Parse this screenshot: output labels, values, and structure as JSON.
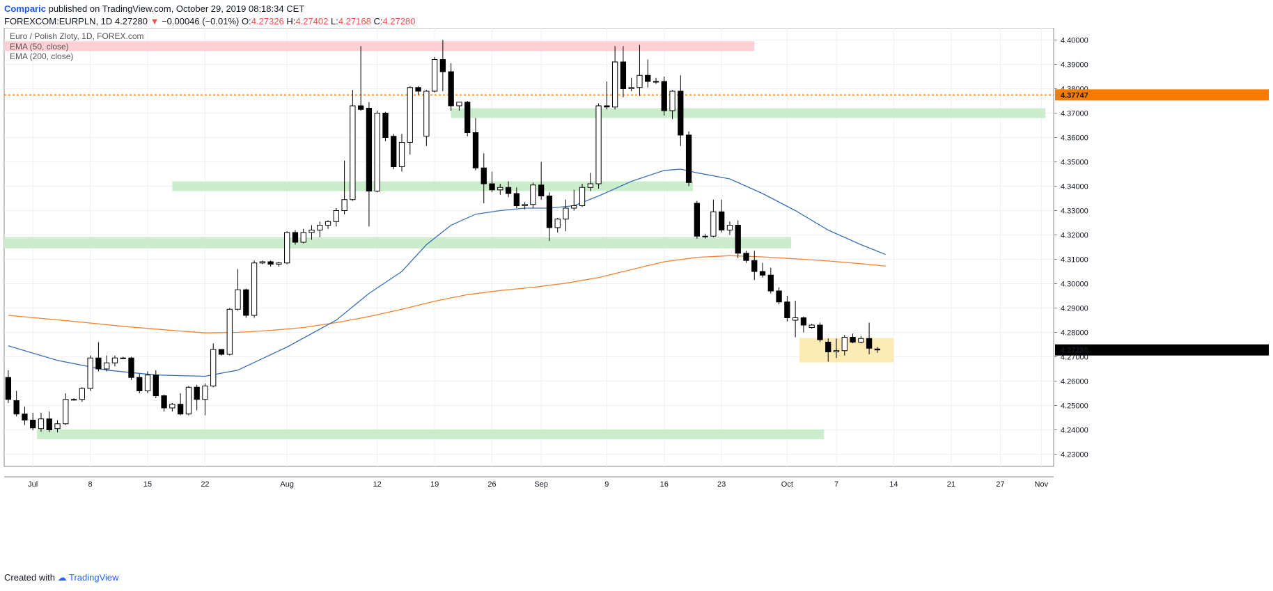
{
  "header": {
    "author": "Comparic",
    "published_text": "published on TradingView.com, October 29, 2019 08:18:34 CET",
    "symbol": "FOREXCOM:EURPLN, 1D",
    "last": "4.27280",
    "arrow": "▼",
    "change": "−0.00046 (−0.01%)",
    "o_label": "O:",
    "o_val": "4.27326",
    "h_label": "H:",
    "h_val": "4.27402",
    "l_label": "L:",
    "l_val": "4.27168",
    "c_label": "C:",
    "c_val": "4.27280"
  },
  "footer": {
    "created_with": "Created with",
    "brand": "TradingView"
  },
  "colors": {
    "up_fill": "#ffffff",
    "down_fill": "#000000",
    "wick": "#000000",
    "ema50": "#3a6fb5",
    "ema200": "#f48431",
    "resistance_zone": "#ffcdd2",
    "support_zone": "#c8ecc8",
    "consolidation_zone": "#fde8a8",
    "ref_line": "#f57c00",
    "last_price_bg": "#000000"
  },
  "chart_data": {
    "type": "candlestick",
    "title": "Euro / Polish Zloty, 1D, FOREX.com",
    "legend": [
      "EMA (50, close)",
      "EMA (200, close)"
    ],
    "legend_position": "top-left",
    "grid": true,
    "ylim": [
      4.225,
      4.405
    ],
    "y_ticks": [
      "4.23000",
      "4.24000",
      "4.25000",
      "4.26000",
      "4.27000",
      "4.28000",
      "4.29000",
      "4.30000",
      "4.31000",
      "4.32000",
      "4.33000",
      "4.34000",
      "4.35000",
      "4.36000",
      "4.37000",
      "4.38000",
      "4.39000",
      "4.40000"
    ],
    "x_tick_labels": [
      {
        "label": "Jul",
        "day": -1
      },
      {
        "label": "8",
        "day": 6
      },
      {
        "label": "15",
        "day": 13
      },
      {
        "label": "22",
        "day": 20
      },
      {
        "label": "Aug",
        "day": 30
      },
      {
        "label": "12",
        "day": 41
      },
      {
        "label": "19",
        "day": 48
      },
      {
        "label": "26",
        "day": 55
      },
      {
        "label": "Sep",
        "day": 61
      },
      {
        "label": "9",
        "day": 69
      },
      {
        "label": "16",
        "day": 76
      },
      {
        "label": "23",
        "day": 83
      },
      {
        "label": "Oct",
        "day": 91
      },
      {
        "label": "7",
        "day": 97
      },
      {
        "label": "14",
        "day": 104
      },
      {
        "label": "21",
        "day": 111
      },
      {
        "label": "27",
        "day": 117
      },
      {
        "label": "Nov",
        "day": 122
      }
    ],
    "candles": [
      {
        "day": -4,
        "o": 4.2615,
        "h": 4.2645,
        "l": 4.251,
        "c": 4.2525
      },
      {
        "day": -3,
        "o": 4.252,
        "h": 4.256,
        "l": 4.2455,
        "c": 4.2465
      },
      {
        "day": -2,
        "o": 4.2465,
        "h": 4.2495,
        "l": 4.242,
        "c": 4.244
      },
      {
        "day": -1,
        "o": 4.244,
        "h": 4.247,
        "l": 4.2398,
        "c": 4.2408
      },
      {
        "day": 0,
        "o": 4.2405,
        "h": 4.247,
        "l": 4.2392,
        "c": 4.2445
      },
      {
        "day": 1,
        "o": 4.2445,
        "h": 4.2475,
        "l": 4.239,
        "c": 4.24
      },
      {
        "day": 2,
        "o": 4.2405,
        "h": 4.244,
        "l": 4.239,
        "c": 4.2425
      },
      {
        "day": 3,
        "o": 4.2425,
        "h": 4.255,
        "l": 4.242,
        "c": 4.2525
      },
      {
        "day": 4,
        "o": 4.2525,
        "h": 4.253,
        "l": 4.252,
        "c": 4.2525
      },
      {
        "day": 5,
        "o": 4.2525,
        "h": 4.2575,
        "l": 4.2515,
        "c": 4.257
      },
      {
        "day": 6,
        "o": 4.257,
        "h": 4.2705,
        "l": 4.256,
        "c": 4.2695
      },
      {
        "day": 7,
        "o": 4.2695,
        "h": 4.276,
        "l": 4.264,
        "c": 4.265
      },
      {
        "day": 8,
        "o": 4.265,
        "h": 4.2705,
        "l": 4.264,
        "c": 4.2675
      },
      {
        "day": 9,
        "o": 4.2675,
        "h": 4.2705,
        "l": 4.266,
        "c": 4.2695
      },
      {
        "day": 10,
        "o": 4.2695,
        "h": 4.27,
        "l": 4.269,
        "c": 4.2695
      },
      {
        "day": 11,
        "o": 4.2695,
        "h": 4.27,
        "l": 4.2605,
        "c": 4.2615
      },
      {
        "day": 12,
        "o": 4.2615,
        "h": 4.263,
        "l": 4.255,
        "c": 4.256
      },
      {
        "day": 13,
        "o": 4.256,
        "h": 4.264,
        "l": 4.255,
        "c": 4.2625
      },
      {
        "day": 14,
        "o": 4.2625,
        "h": 4.2645,
        "l": 4.253,
        "c": 4.254
      },
      {
        "day": 15,
        "o": 4.254,
        "h": 4.2545,
        "l": 4.2475,
        "c": 4.249
      },
      {
        "day": 16,
        "o": 4.249,
        "h": 4.251,
        "l": 4.2475,
        "c": 4.2505
      },
      {
        "day": 17,
        "o": 4.2505,
        "h": 4.255,
        "l": 4.246,
        "c": 4.2465
      },
      {
        "day": 18,
        "o": 4.2465,
        "h": 4.258,
        "l": 4.246,
        "c": 4.2575
      },
      {
        "day": 19,
        "o": 4.2575,
        "h": 4.2585,
        "l": 4.248,
        "c": 4.2525
      },
      {
        "day": 20,
        "o": 4.2525,
        "h": 4.259,
        "l": 4.246,
        "c": 4.258
      },
      {
        "day": 21,
        "o": 4.258,
        "h": 4.2755,
        "l": 4.2575,
        "c": 4.273
      },
      {
        "day": 22,
        "o": 4.273,
        "h": 4.273,
        "l": 4.2705,
        "c": 4.271
      },
      {
        "day": 23,
        "o": 4.271,
        "h": 4.29,
        "l": 4.2705,
        "c": 4.2895
      },
      {
        "day": 24,
        "o": 4.2895,
        "h": 4.306,
        "l": 4.289,
        "c": 4.2975
      },
      {
        "day": 25,
        "o": 4.2975,
        "h": 4.298,
        "l": 4.286,
        "c": 4.287
      },
      {
        "day": 26,
        "o": 4.287,
        "h": 4.3095,
        "l": 4.286,
        "c": 4.3085
      },
      {
        "day": 27,
        "o": 4.3085,
        "h": 4.3095,
        "l": 4.308,
        "c": 4.309
      },
      {
        "day": 28,
        "o": 4.309,
        "h": 4.3095,
        "l": 4.307,
        "c": 4.308
      },
      {
        "day": 29,
        "o": 4.308,
        "h": 4.309,
        "l": 4.307,
        "c": 4.3085
      },
      {
        "day": 30,
        "o": 4.3085,
        "h": 4.3215,
        "l": 4.308,
        "c": 4.321
      },
      {
        "day": 31,
        "o": 4.321,
        "h": 4.322,
        "l": 4.316,
        "c": 4.317
      },
      {
        "day": 32,
        "o": 4.317,
        "h": 4.3225,
        "l": 4.3165,
        "c": 4.321
      },
      {
        "day": 33,
        "o": 4.321,
        "h": 4.324,
        "l": 4.318,
        "c": 4.322
      },
      {
        "day": 34,
        "o": 4.322,
        "h": 4.3255,
        "l": 4.319,
        "c": 4.324
      },
      {
        "day": 35,
        "o": 4.324,
        "h": 4.326,
        "l": 4.3225,
        "c": 4.3255
      },
      {
        "day": 36,
        "o": 4.3255,
        "h": 4.331,
        "l": 4.3235,
        "c": 4.33
      },
      {
        "day": 37,
        "o": 4.33,
        "h": 4.3505,
        "l": 4.3285,
        "c": 4.3345
      },
      {
        "day": 38,
        "o": 4.3345,
        "h": 4.3795,
        "l": 4.334,
        "c": 4.373
      },
      {
        "day": 39,
        "o": 4.373,
        "h": 4.3975,
        "l": 4.371,
        "c": 4.3715
      },
      {
        "day": 40,
        "o": 4.372,
        "h": 4.3745,
        "l": 4.3235,
        "c": 4.338
      },
      {
        "day": 41,
        "o": 4.338,
        "h": 4.371,
        "l": 4.3375,
        "c": 4.37
      },
      {
        "day": 42,
        "o": 4.37,
        "h": 4.3705,
        "l": 4.3585,
        "c": 4.36
      },
      {
        "day": 43,
        "o": 4.3605,
        "h": 4.3615,
        "l": 4.347,
        "c": 4.348
      },
      {
        "day": 44,
        "o": 4.348,
        "h": 4.3615,
        "l": 4.346,
        "c": 4.358
      },
      {
        "day": 45,
        "o": 4.358,
        "h": 4.381,
        "l": 4.353,
        "c": 4.3805
      },
      {
        "day": 46,
        "o": 4.3805,
        "h": 4.381,
        "l": 4.3775,
        "c": 4.379
      },
      {
        "day": 47,
        "o": 4.3605,
        "h": 4.3795,
        "l": 4.3565,
        "c": 4.379
      },
      {
        "day": 48,
        "o": 4.379,
        "h": 4.393,
        "l": 4.3785,
        "c": 4.392
      },
      {
        "day": 49,
        "o": 4.392,
        "h": 4.4,
        "l": 4.379,
        "c": 4.387
      },
      {
        "day": 50,
        "o": 4.387,
        "h": 4.3905,
        "l": 4.371,
        "c": 4.373
      },
      {
        "day": 51,
        "o": 4.373,
        "h": 4.3745,
        "l": 4.371,
        "c": 4.3745
      },
      {
        "day": 52,
        "o": 4.3745,
        "h": 4.375,
        "l": 4.3605,
        "c": 4.362
      },
      {
        "day": 53,
        "o": 4.362,
        "h": 4.368,
        "l": 4.3465,
        "c": 4.3475
      },
      {
        "day": 54,
        "o": 4.3475,
        "h": 4.3535,
        "l": 4.333,
        "c": 4.341
      },
      {
        "day": 55,
        "o": 4.341,
        "h": 4.346,
        "l": 4.3375,
        "c": 4.3385
      },
      {
        "day": 56,
        "o": 4.3385,
        "h": 4.341,
        "l": 4.3365,
        "c": 4.3395
      },
      {
        "day": 57,
        "o": 4.3395,
        "h": 4.342,
        "l": 4.3355,
        "c": 4.337
      },
      {
        "day": 58,
        "o": 4.337,
        "h": 4.3395,
        "l": 4.331,
        "c": 4.332
      },
      {
        "day": 59,
        "o": 4.332,
        "h": 4.3335,
        "l": 4.3305,
        "c": 4.3325
      },
      {
        "day": 60,
        "o": 4.3325,
        "h": 4.3415,
        "l": 4.331,
        "c": 4.3405
      },
      {
        "day": 61,
        "o": 4.3405,
        "h": 4.35,
        "l": 4.3345,
        "c": 4.336
      },
      {
        "day": 62,
        "o": 4.336,
        "h": 4.3375,
        "l": 4.3175,
        "c": 4.323
      },
      {
        "day": 63,
        "o": 4.323,
        "h": 4.327,
        "l": 4.321,
        "c": 4.3265
      },
      {
        "day": 64,
        "o": 4.3265,
        "h": 4.3345,
        "l": 4.3215,
        "c": 4.331
      },
      {
        "day": 65,
        "o": 4.331,
        "h": 4.3385,
        "l": 4.33,
        "c": 4.332
      },
      {
        "day": 66,
        "o": 4.332,
        "h": 4.341,
        "l": 4.3315,
        "c": 4.3395
      },
      {
        "day": 67,
        "o": 4.3395,
        "h": 4.3455,
        "l": 4.338,
        "c": 4.341
      },
      {
        "day": 68,
        "o": 4.341,
        "h": 4.374,
        "l": 4.339,
        "c": 4.373
      },
      {
        "day": 69,
        "o": 4.373,
        "h": 4.383,
        "l": 4.3715,
        "c": 4.3725
      },
      {
        "day": 70,
        "o": 4.3725,
        "h": 4.3975,
        "l": 4.3715,
        "c": 4.391
      },
      {
        "day": 71,
        "o": 4.391,
        "h": 4.3975,
        "l": 4.3765,
        "c": 4.38
      },
      {
        "day": 72,
        "o": 4.38,
        "h": 4.3845,
        "l": 4.379,
        "c": 4.3805
      },
      {
        "day": 73,
        "o": 4.3805,
        "h": 4.398,
        "l": 4.377,
        "c": 4.3855
      },
      {
        "day": 74,
        "o": 4.3855,
        "h": 4.392,
        "l": 4.3805,
        "c": 4.383
      },
      {
        "day": 75,
        "o": 4.383,
        "h": 4.3845,
        "l": 4.382,
        "c": 4.383
      },
      {
        "day": 76,
        "o": 4.383,
        "h": 4.385,
        "l": 4.369,
        "c": 4.371
      },
      {
        "day": 77,
        "o": 4.371,
        "h": 4.3795,
        "l": 4.3675,
        "c": 4.379
      },
      {
        "day": 78,
        "o": 4.379,
        "h": 4.3855,
        "l": 4.3565,
        "c": 4.361
      },
      {
        "day": 79,
        "o": 4.361,
        "h": 4.3625,
        "l": 4.34,
        "c": 4.3415
      },
      {
        "day": 80,
        "o": 4.333,
        "h": 4.334,
        "l": 4.3185,
        "c": 4.3195
      },
      {
        "day": 81,
        "o": 4.3195,
        "h": 4.3205,
        "l": 4.3185,
        "c": 4.3195
      },
      {
        "day": 82,
        "o": 4.3195,
        "h": 4.3345,
        "l": 4.319,
        "c": 4.3295
      },
      {
        "day": 83,
        "o": 4.3295,
        "h": 4.3345,
        "l": 4.321,
        "c": 4.322
      },
      {
        "day": 84,
        "o": 4.322,
        "h": 4.3255,
        "l": 4.32,
        "c": 4.324
      },
      {
        "day": 85,
        "o": 4.324,
        "h": 4.326,
        "l": 4.3105,
        "c": 4.3125
      },
      {
        "day": 86,
        "o": 4.3125,
        "h": 4.3135,
        "l": 4.3085,
        "c": 4.3095
      },
      {
        "day": 87,
        "o": 4.3095,
        "h": 4.3135,
        "l": 4.3015,
        "c": 4.305
      },
      {
        "day": 88,
        "o": 4.305,
        "h": 4.3085,
        "l": 4.3025,
        "c": 4.3035
      },
      {
        "day": 89,
        "o": 4.3035,
        "h": 4.3065,
        "l": 4.296,
        "c": 4.297
      },
      {
        "day": 90,
        "o": 4.297,
        "h": 4.2985,
        "l": 4.2915,
        "c": 4.2925
      },
      {
        "day": 91,
        "o": 4.2925,
        "h": 4.295,
        "l": 4.2845,
        "c": 4.286
      },
      {
        "day": 92,
        "o": 4.285,
        "h": 4.293,
        "l": 4.278,
        "c": 4.286
      },
      {
        "day": 93,
        "o": 4.286,
        "h": 4.2865,
        "l": 4.28,
        "c": 4.283
      },
      {
        "day": 94,
        "o": 4.282,
        "h": 4.2835,
        "l": 4.2815,
        "c": 4.283
      },
      {
        "day": 95,
        "o": 4.283,
        "h": 4.284,
        "l": 4.276,
        "c": 4.277
      },
      {
        "day": 96,
        "o": 4.276,
        "h": 4.2775,
        "l": 4.268,
        "c": 4.272
      },
      {
        "day": 97,
        "o": 4.272,
        "h": 4.2775,
        "l": 4.2695,
        "c": 4.2725
      },
      {
        "day": 98,
        "o": 4.2725,
        "h": 4.279,
        "l": 4.2705,
        "c": 4.278
      },
      {
        "day": 99,
        "o": 4.278,
        "h": 4.2795,
        "l": 4.2755,
        "c": 4.276
      },
      {
        "day": 100,
        "o": 4.276,
        "h": 4.2785,
        "l": 4.2755,
        "c": 4.2775
      },
      {
        "day": 101,
        "o": 4.2775,
        "h": 4.284,
        "l": 4.271,
        "c": 4.2735
      },
      {
        "day": 102,
        "o": 4.2732,
        "h": 4.274,
        "l": 4.2716,
        "c": 4.2728
      }
    ],
    "ema50": [
      [
        -4,
        4.2745
      ],
      [
        2,
        4.2685
      ],
      [
        8,
        4.2645
      ],
      [
        14,
        4.2625
      ],
      [
        20,
        4.262
      ],
      [
        24,
        4.2645
      ],
      [
        30,
        4.274
      ],
      [
        36,
        4.285
      ],
      [
        40,
        4.296
      ],
      [
        44,
        4.305
      ],
      [
        47,
        4.316
      ],
      [
        50,
        4.324
      ],
      [
        53,
        4.3285
      ],
      [
        56,
        4.33
      ],
      [
        59,
        4.331
      ],
      [
        62,
        4.331
      ],
      [
        65,
        4.332
      ],
      [
        68,
        4.336
      ],
      [
        72,
        4.342
      ],
      [
        76,
        4.3465
      ],
      [
        78,
        4.347
      ],
      [
        80,
        4.3455
      ],
      [
        84,
        4.343
      ],
      [
        88,
        4.337
      ],
      [
        92,
        4.33
      ],
      [
        96,
        4.322
      ],
      [
        100,
        4.316
      ],
      [
        103,
        4.312
      ]
    ],
    "ema200": [
      [
        -4,
        4.287
      ],
      [
        4,
        4.2845
      ],
      [
        10,
        4.2825
      ],
      [
        16,
        4.2808
      ],
      [
        20,
        4.2798
      ],
      [
        24,
        4.28
      ],
      [
        28,
        4.2808
      ],
      [
        32,
        4.282
      ],
      [
        36,
        4.284
      ],
      [
        40,
        4.2865
      ],
      [
        44,
        4.2895
      ],
      [
        48,
        4.2928
      ],
      [
        52,
        4.2955
      ],
      [
        56,
        4.2972
      ],
      [
        60,
        4.2985
      ],
      [
        64,
        4.3002
      ],
      [
        68,
        4.3025
      ],
      [
        72,
        4.3058
      ],
      [
        76,
        4.309
      ],
      [
        80,
        4.3108
      ],
      [
        84,
        4.3115
      ],
      [
        88,
        4.311
      ],
      [
        92,
        4.3102
      ],
      [
        96,
        4.3093
      ],
      [
        100,
        4.3082
      ],
      [
        103,
        4.3072
      ]
    ],
    "zones": [
      {
        "kind": "resistance",
        "from_day": -4.5,
        "to_day": 87,
        "y0": 4.3955,
        "y1": 4.3995
      },
      {
        "kind": "support",
        "from_day": 50,
        "to_day": 122.5,
        "y0": 4.368,
        "y1": 4.372
      },
      {
        "kind": "support",
        "from_day": 16,
        "to_day": 79.5,
        "y0": 4.338,
        "y1": 4.342
      },
      {
        "kind": "support",
        "from_day": -4.5,
        "to_day": 91.5,
        "y0": 4.3145,
        "y1": 4.319
      },
      {
        "kind": "support",
        "from_day": -0.5,
        "to_day": 95.5,
        "y0": 4.2362,
        "y1": 4.2402
      },
      {
        "kind": "consolidation",
        "from_day": 92.5,
        "to_day": 104,
        "y0": 4.2677,
        "y1": 4.2777
      }
    ],
    "ref_line": {
      "value": 4.37747,
      "label": "4.37747"
    },
    "last_price": {
      "value": 4.2728,
      "label": "4.27280"
    }
  }
}
